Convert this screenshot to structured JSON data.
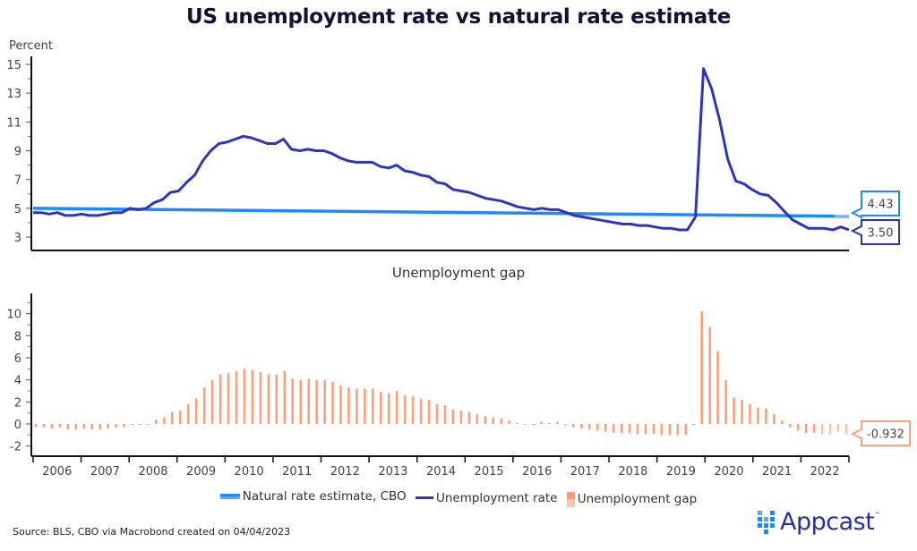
{
  "title": "US unemployment rate vs natural rate estimate",
  "source": "Source: BLS, CBO via Macrobond created on 04/04/2023",
  "brand": {
    "name": "Appcast",
    "tm": "™",
    "color": "#2b2f9e",
    "accent": "#1e88ff"
  },
  "legend": [
    {
      "label": "Natural rate estimate, CBO",
      "color": "#1e88ff"
    },
    {
      "label": "Unemployment rate",
      "color": "#2e36b8"
    },
    {
      "label": "Unemployment gap",
      "color": "#ffa07a"
    }
  ],
  "chart_data": [
    {
      "type": "line",
      "title": "US unemployment rate vs natural rate estimate",
      "ylabel": "Percent",
      "xlabel": "",
      "ylim": [
        2.5,
        15.5
      ],
      "yticks": [
        "15",
        "13",
        "11",
        "9",
        "7",
        "5",
        "3"
      ],
      "xticks": [
        "2006",
        "2007",
        "2008",
        "2009",
        "2010",
        "2011",
        "2012",
        "2013",
        "2014",
        "2015",
        "2016",
        "2017",
        "2018",
        "2019",
        "2020",
        "2021",
        "2022"
      ],
      "xlim": [
        2006.0,
        2023.0
      ],
      "grid": false,
      "x_step_note": "values every 2 months starting Jan 2006",
      "series": [
        {
          "name": "Natural rate estimate, CBO",
          "color": "#1e88ff",
          "start": 5.0,
          "end": 4.43,
          "end_label": "4.43"
        },
        {
          "name": "Unemployment rate",
          "color": "#2e36b8",
          "end_label": "3.50",
          "values": [
            4.7,
            4.7,
            4.6,
            4.7,
            4.5,
            4.5,
            4.6,
            4.5,
            4.5,
            4.6,
            4.7,
            4.7,
            5.0,
            4.9,
            5.0,
            5.4,
            5.6,
            6.1,
            6.2,
            6.8,
            7.3,
            8.3,
            9.0,
            9.5,
            9.6,
            9.8,
            10.0,
            9.9,
            9.7,
            9.5,
            9.5,
            9.8,
            9.1,
            9.0,
            9.1,
            9.0,
            9.0,
            8.8,
            8.5,
            8.3,
            8.2,
            8.2,
            8.2,
            7.9,
            7.8,
            8.0,
            7.6,
            7.5,
            7.3,
            7.2,
            6.8,
            6.7,
            6.3,
            6.2,
            6.1,
            5.9,
            5.7,
            5.6,
            5.5,
            5.3,
            5.1,
            5.0,
            4.9,
            5.0,
            4.9,
            4.9,
            4.7,
            4.5,
            4.4,
            4.3,
            4.2,
            4.1,
            4.0,
            3.9,
            3.9,
            3.8,
            3.8,
            3.7,
            3.6,
            3.6,
            3.5,
            3.5,
            4.4,
            14.7,
            13.3,
            11.1,
            8.4,
            6.9,
            6.7,
            6.3,
            6.0,
            5.9,
            5.4,
            4.8,
            4.2,
            3.9,
            3.6,
            3.6,
            3.6,
            3.5,
            3.7,
            3.5
          ]
        }
      ]
    },
    {
      "type": "bar",
      "title": "Unemployment gap",
      "ylabel": "",
      "ylim": [
        -2.8,
        11
      ],
      "yticks": [
        "10",
        "8",
        "6",
        "4",
        "2",
        "0",
        "-2"
      ],
      "xticks": [
        "2006",
        "2007",
        "2008",
        "2009",
        "2010",
        "2011",
        "2012",
        "2013",
        "2014",
        "2015",
        "2016",
        "2017",
        "2018",
        "2019",
        "2020",
        "2021",
        "2022"
      ],
      "xlim": [
        2006.0,
        2023.0
      ],
      "grid": false,
      "color": "#ffa07a",
      "end_label": "-0.932",
      "values": [
        -0.3,
        -0.3,
        -0.4,
        -0.3,
        -0.5,
        -0.5,
        -0.4,
        -0.5,
        -0.5,
        -0.4,
        -0.3,
        -0.3,
        0.0,
        -0.1,
        0.0,
        0.4,
        0.6,
        1.1,
        1.2,
        1.8,
        2.3,
        3.3,
        4.0,
        4.5,
        4.6,
        4.8,
        5.0,
        4.9,
        4.7,
        4.5,
        4.5,
        4.8,
        4.1,
        4.0,
        4.1,
        4.0,
        4.0,
        3.8,
        3.5,
        3.3,
        3.2,
        3.2,
        3.2,
        2.9,
        2.8,
        3.0,
        2.6,
        2.5,
        2.3,
        2.2,
        1.8,
        1.7,
        1.3,
        1.2,
        1.1,
        0.9,
        0.7,
        0.6,
        0.5,
        0.3,
        0.1,
        0.0,
        -0.1,
        0.2,
        0.1,
        0.2,
        -0.1,
        -0.3,
        -0.4,
        -0.5,
        -0.6,
        -0.7,
        -0.8,
        -0.8,
        -0.8,
        -0.9,
        -0.9,
        -0.9,
        -1.0,
        -1.0,
        -1.0,
        -1.0,
        -0.1,
        10.2,
        8.8,
        6.6,
        4.0,
        2.4,
        2.2,
        1.8,
        1.5,
        1.4,
        0.9,
        0.3,
        -0.3,
        -0.6,
        -0.8,
        -0.8,
        -0.9,
        -0.9,
        -0.7,
        -0.93
      ]
    }
  ]
}
